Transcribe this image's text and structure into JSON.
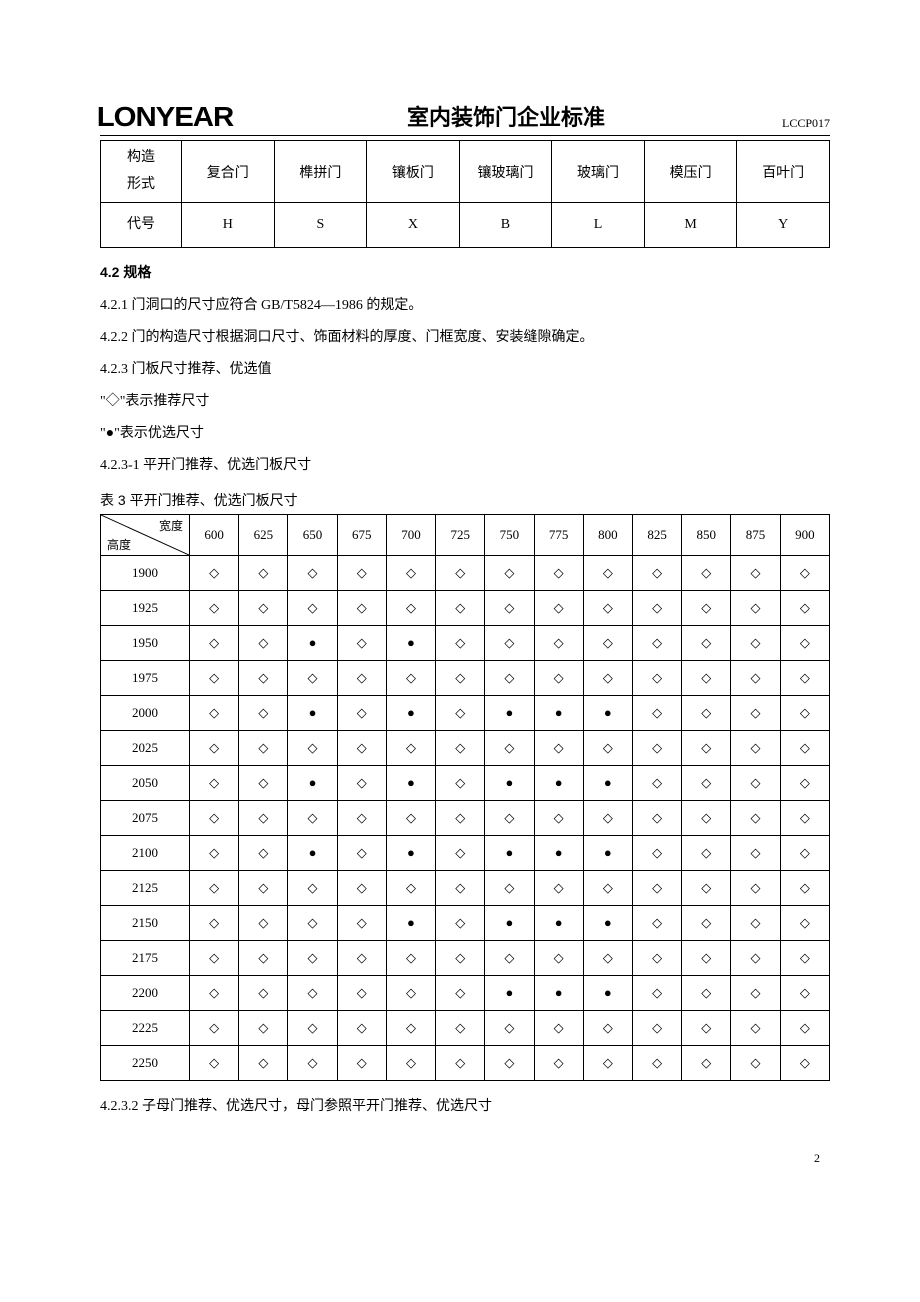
{
  "header": {
    "brand": "LONYEAR",
    "title": "室内装饰门企业标准",
    "doc_code": "LCCP017"
  },
  "table1": {
    "row1_label": "构造\n形式",
    "row2_label": "代号",
    "cols": [
      {
        "name": "复合门",
        "code": "H"
      },
      {
        "name": "榫拼门",
        "code": "S"
      },
      {
        "name": "镶板门",
        "code": "X"
      },
      {
        "name": "镶玻璃门",
        "code": "B"
      },
      {
        "name": "玻璃门",
        "code": "L"
      },
      {
        "name": "模压门",
        "code": "M"
      },
      {
        "name": "百叶门",
        "code": "Y"
      }
    ]
  },
  "section": {
    "h": "4.2 规格",
    "p1": "4.2.1 门洞口的尺寸应符合 GB/T5824—1986 的规定。",
    "p2": "4.2.2 门的构造尺寸根据洞口尺寸、饰面材料的厚度、门框宽度、安装缝隙确定。",
    "p3": "4.2.3 门板尺寸推荐、优选值",
    "p4": "\"◇\"表示推荐尺寸",
    "p5": "\"●\"表示优选尺寸",
    "p6": "4.2.3-1 平开门推荐、优选门板尺寸",
    "tcap": "表 3 平开门推荐、优选门板尺寸",
    "p7": "4.2.3.2 子母门推荐、优选尺寸，母门参照平开门推荐、优选尺寸"
  },
  "table2": {
    "diag_top": "宽度",
    "diag_bottom": "高度",
    "widths": [
      "600",
      "625",
      "650",
      "675",
      "700",
      "725",
      "750",
      "775",
      "800",
      "825",
      "850",
      "875",
      "900"
    ],
    "heights": [
      "1900",
      "1925",
      "1950",
      "1975",
      "2000",
      "2025",
      "2050",
      "2075",
      "2100",
      "2125",
      "2150",
      "2175",
      "2200",
      "2225",
      "2250"
    ],
    "symbol_recommend": "◇",
    "symbol_prefer": "●",
    "grid": [
      [
        "r",
        "r",
        "r",
        "r",
        "r",
        "r",
        "r",
        "r",
        "r",
        "r",
        "r",
        "r",
        "r"
      ],
      [
        "r",
        "r",
        "r",
        "r",
        "r",
        "r",
        "r",
        "r",
        "r",
        "r",
        "r",
        "r",
        "r"
      ],
      [
        "r",
        "r",
        "p",
        "r",
        "p",
        "r",
        "r",
        "r",
        "r",
        "r",
        "r",
        "r",
        "r"
      ],
      [
        "r",
        "r",
        "r",
        "r",
        "r",
        "r",
        "r",
        "r",
        "r",
        "r",
        "r",
        "r",
        "r"
      ],
      [
        "r",
        "r",
        "p",
        "r",
        "p",
        "r",
        "p",
        "p",
        "p",
        "r",
        "r",
        "r",
        "r"
      ],
      [
        "r",
        "r",
        "r",
        "r",
        "r",
        "r",
        "r",
        "r",
        "r",
        "r",
        "r",
        "r",
        "r"
      ],
      [
        "r",
        "r",
        "p",
        "r",
        "p",
        "r",
        "p",
        "p",
        "p",
        "r",
        "r",
        "r",
        "r"
      ],
      [
        "r",
        "r",
        "r",
        "r",
        "r",
        "r",
        "r",
        "r",
        "r",
        "r",
        "r",
        "r",
        "r"
      ],
      [
        "r",
        "r",
        "p",
        "r",
        "p",
        "r",
        "p",
        "p",
        "p",
        "r",
        "r",
        "r",
        "r"
      ],
      [
        "r",
        "r",
        "r",
        "r",
        "r",
        "r",
        "r",
        "r",
        "r",
        "r",
        "r",
        "r",
        "r"
      ],
      [
        "r",
        "r",
        "r",
        "r",
        "p",
        "r",
        "p",
        "p",
        "p",
        "r",
        "r",
        "r",
        "r"
      ],
      [
        "r",
        "r",
        "r",
        "r",
        "r",
        "r",
        "r",
        "r",
        "r",
        "r",
        "r",
        "r",
        "r"
      ],
      [
        "r",
        "r",
        "r",
        "r",
        "r",
        "r",
        "p",
        "p",
        "p",
        "r",
        "r",
        "r",
        "r"
      ],
      [
        "r",
        "r",
        "r",
        "r",
        "r",
        "r",
        "r",
        "r",
        "r",
        "r",
        "r",
        "r",
        "r"
      ],
      [
        "r",
        "r",
        "r",
        "r",
        "r",
        "r",
        "r",
        "r",
        "r",
        "r",
        "r",
        "r",
        "r"
      ]
    ]
  },
  "page_number": "2"
}
